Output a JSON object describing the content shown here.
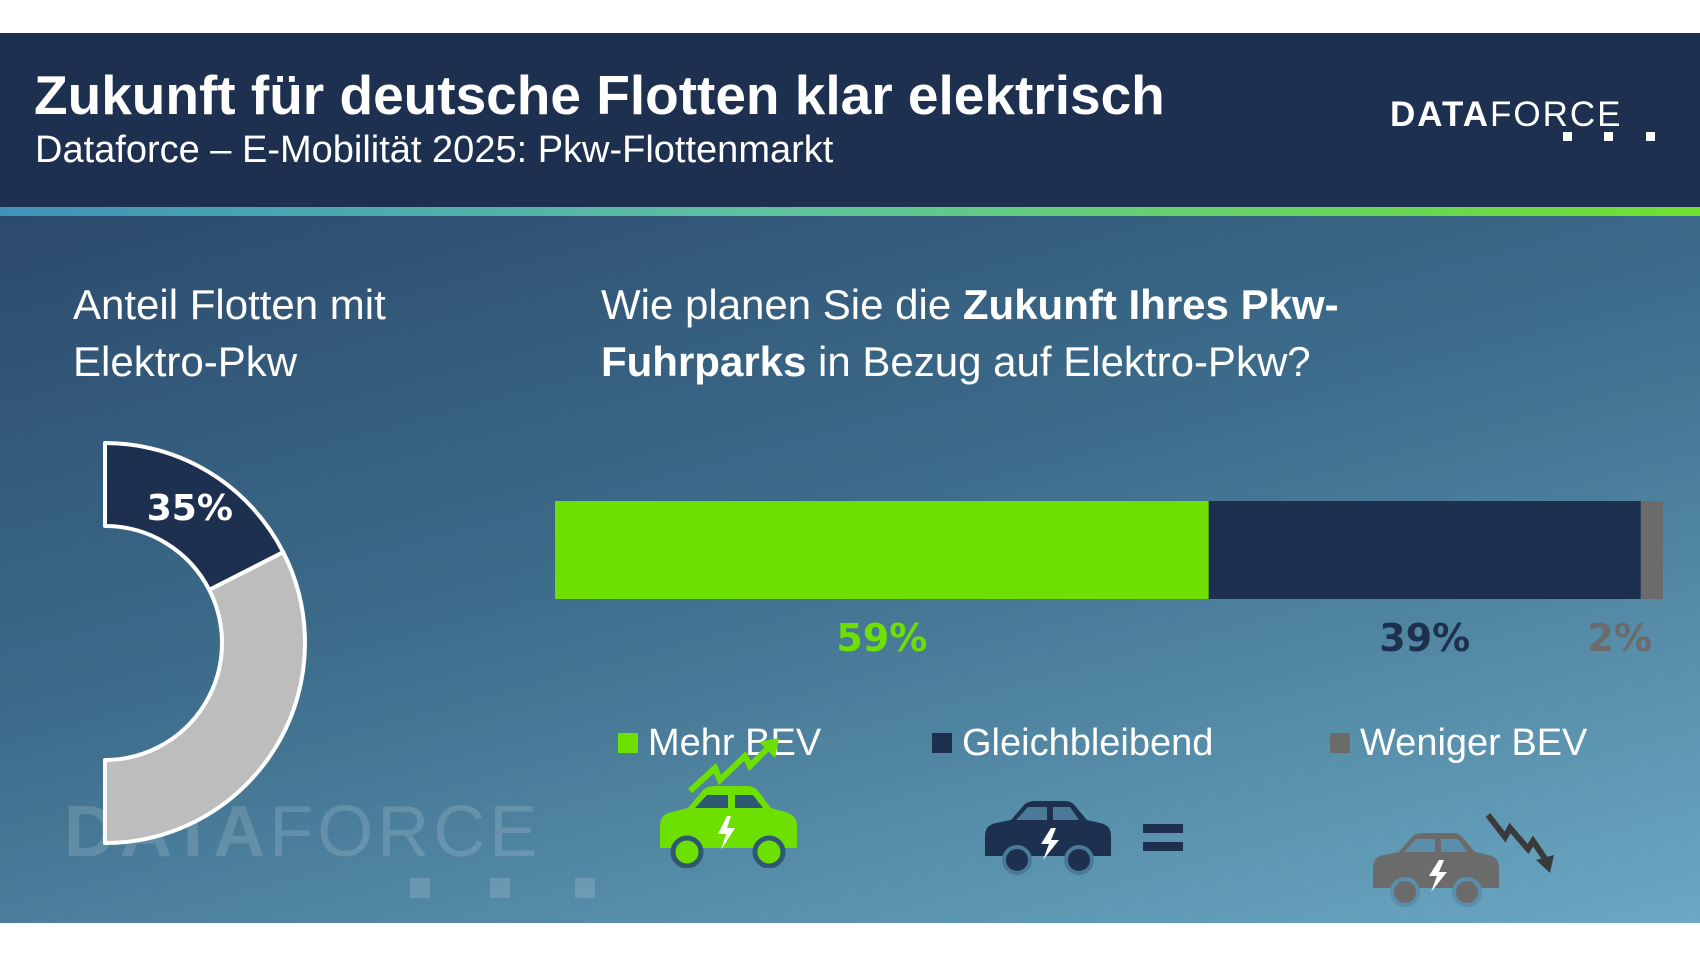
{
  "header": {
    "title": "Zukunft für deutsche Flotten klar elektrisch",
    "subtitle": "Dataforce – E-Mobilität 2025: Pkw-Flottenmarkt"
  },
  "logo": {
    "bold": "DATA",
    "light": "FORCE"
  },
  "left_panel": {
    "title_line1": "Anteil Flotten mit",
    "title_line2": "Elektro-Pkw"
  },
  "right_panel": {
    "q_line1_normal": "Wie planen Sie die ",
    "q_line1_bold": "Zukunft Ihres Pkw-",
    "q_line2_bold": "Fuhrparks",
    "q_line2_normal": " in Bezug auf Elektro-Pkw?"
  },
  "watermark": {
    "bold": "DATA",
    "light": "FORCE"
  },
  "colors": {
    "header_bg": "#1e3050",
    "green": "#6ee000",
    "navy": "#1e3050",
    "gray": "#6b6b6b",
    "donut_gray": "#bdbdbd",
    "white": "#ffffff"
  },
  "icons": [
    "car-rising-arrow-icon",
    "car-equals-icon",
    "car-falling-arrow-icon"
  ],
  "chart_data": [
    {
      "type": "pie",
      "variant": "half-donut",
      "categories": [
        "",
        ""
      ],
      "values": [
        35,
        65
      ],
      "labels": [
        "35%",
        ""
      ],
      "colors": [
        "#1e3050",
        "#bdbdbd"
      ]
    },
    {
      "type": "bar",
      "variant": "100% stacked horizontal",
      "categories": [
        "Mehr BEV",
        "Gleichbleibend",
        "Weniger BEV"
      ],
      "values": [
        59,
        39,
        2
      ],
      "labels": [
        "59%",
        "39%",
        "2%"
      ],
      "colors": [
        "#6ee000",
        "#1e3050",
        "#6b6b6b"
      ],
      "legend": "bottom"
    }
  ]
}
